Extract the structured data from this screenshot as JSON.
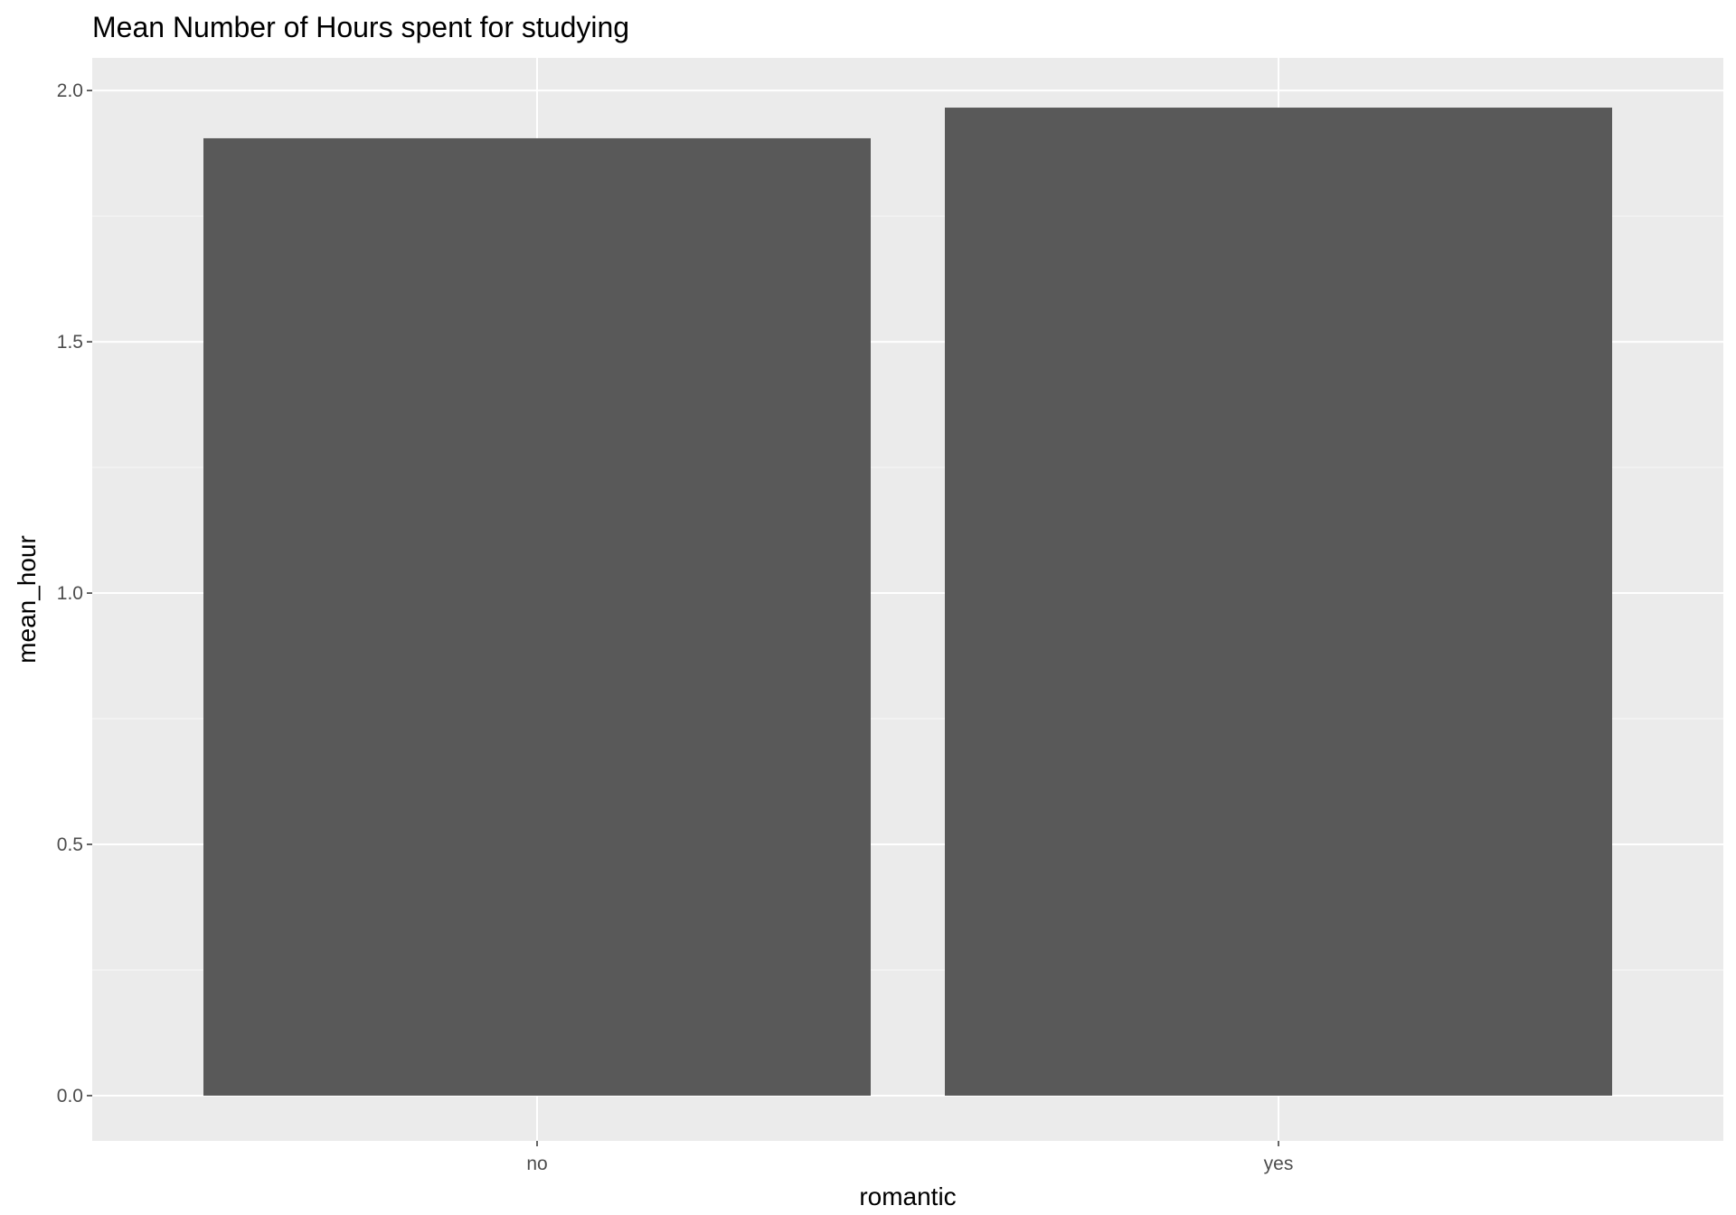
{
  "chart_data": {
    "type": "bar",
    "title": "Mean Number of Hours spent for studying",
    "xlabel": "romantic",
    "ylabel": "mean_hour",
    "categories": [
      "no",
      "yes"
    ],
    "values": [
      1.905,
      1.966
    ],
    "ylim": [
      -0.09,
      2.065
    ],
    "yticks": [
      0.0,
      0.5,
      1.0,
      1.5,
      2.0
    ],
    "ytick_labels": [
      "0.0",
      "0.5",
      "1.0",
      "1.5",
      "2.0"
    ],
    "grid": true,
    "legend": "none",
    "colors": {
      "bar": "#595959",
      "panel": "#ebebeb",
      "grid_major": "#ffffff",
      "grid_minor": "#f5f5f5",
      "tick": "#333333"
    }
  }
}
